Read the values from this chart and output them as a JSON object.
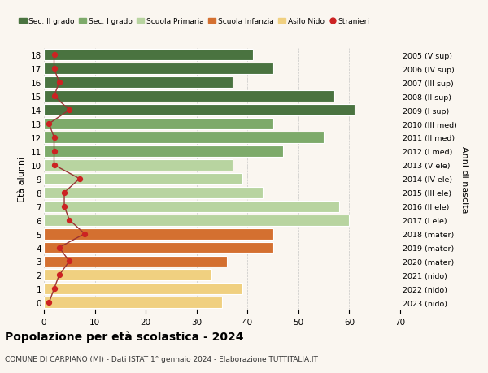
{
  "ages": [
    18,
    17,
    16,
    15,
    14,
    13,
    12,
    11,
    10,
    9,
    8,
    7,
    6,
    5,
    4,
    3,
    2,
    1,
    0
  ],
  "values": [
    41,
    45,
    37,
    57,
    61,
    45,
    55,
    47,
    37,
    39,
    43,
    58,
    60,
    45,
    45,
    36,
    33,
    39,
    35
  ],
  "stranieri": [
    2,
    2,
    3,
    2,
    5,
    1,
    2,
    2,
    2,
    7,
    4,
    4,
    5,
    8,
    3,
    5,
    3,
    2,
    1
  ],
  "right_labels": [
    "2005 (V sup)",
    "2006 (IV sup)",
    "2007 (III sup)",
    "2008 (II sup)",
    "2009 (I sup)",
    "2010 (III med)",
    "2011 (II med)",
    "2012 (I med)",
    "2013 (V ele)",
    "2014 (IV ele)",
    "2015 (III ele)",
    "2016 (II ele)",
    "2017 (I ele)",
    "2018 (mater)",
    "2019 (mater)",
    "2020 (mater)",
    "2021 (nido)",
    "2022 (nido)",
    "2023 (nido)"
  ],
  "bar_colors": [
    "#4a7340",
    "#4a7340",
    "#4a7340",
    "#4a7340",
    "#4a7340",
    "#7daa6a",
    "#7daa6a",
    "#7daa6a",
    "#b8d4a0",
    "#b8d4a0",
    "#b8d4a0",
    "#b8d4a0",
    "#b8d4a0",
    "#d47030",
    "#d47030",
    "#d47030",
    "#f0d080",
    "#f0d080",
    "#f0d080"
  ],
  "legend_labels": [
    "Sec. II grado",
    "Sec. I grado",
    "Scuola Primaria",
    "Scuola Infanzia",
    "Asilo Nido",
    "Stranieri"
  ],
  "legend_colors": [
    "#4a7340",
    "#7daa6a",
    "#b8d4a0",
    "#d47030",
    "#f0d080",
    "#cc2222"
  ],
  "ylabel_left": "Età alunni",
  "ylabel_right": "Anni di nascita",
  "title": "Popolazione per età scolastica - 2024",
  "subtitle": "COMUNE DI CARPIANO (MI) - Dati ISTAT 1° gennaio 2024 - Elaborazione TUTTITALIA.IT",
  "xlim": [
    0,
    70
  ],
  "background_color": "#faf6f0",
  "stranieri_color": "#cc2222",
  "line_color": "#993333",
  "xticks": [
    0,
    10,
    20,
    30,
    40,
    50,
    60,
    70
  ]
}
